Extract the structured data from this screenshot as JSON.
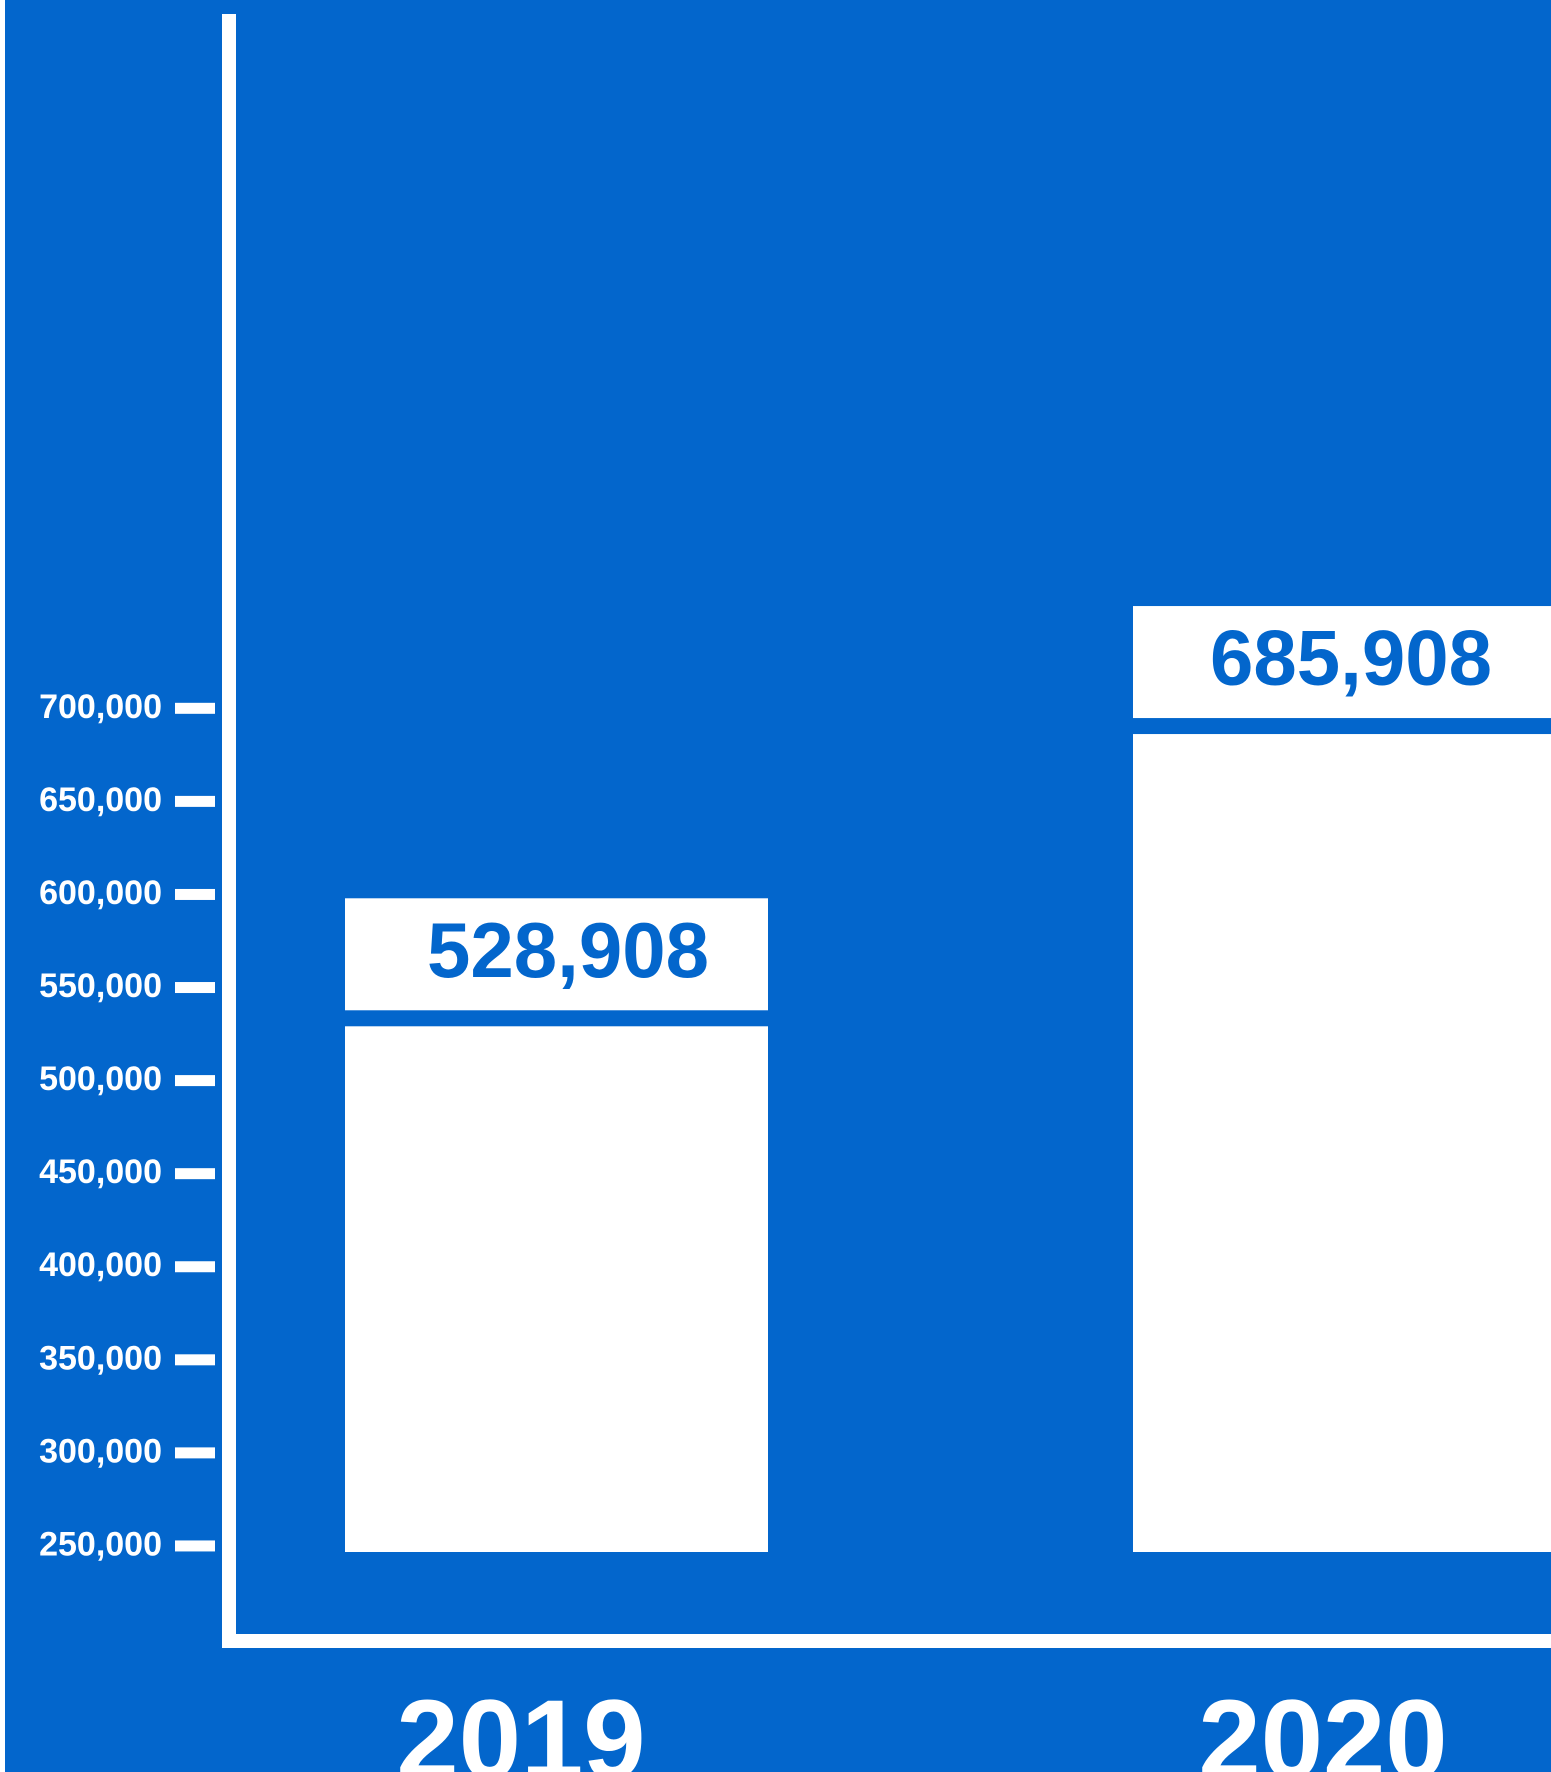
{
  "chart_data": {
    "type": "bar",
    "categories": [
      "2019",
      "2020"
    ],
    "values": [
      528908,
      685908
    ],
    "value_labels": [
      "528,908",
      "685,908"
    ],
    "y_ticks": [
      250000,
      300000,
      350000,
      400000,
      450000,
      500000,
      550000,
      600000,
      650000,
      700000
    ],
    "y_tick_labels": [
      "250,000",
      "300,000",
      "350,000",
      "400,000",
      "450,000",
      "500,000",
      "550,000",
      "600,000",
      "650,000",
      "700,000"
    ],
    "title": "",
    "xlabel": "",
    "ylabel": "",
    "grid": false,
    "legend": "none"
  },
  "colors": {
    "background": "#0366CC",
    "bar": "#FFFFFF",
    "value_text": "#0366CC",
    "axis": "#FFFFFF"
  }
}
